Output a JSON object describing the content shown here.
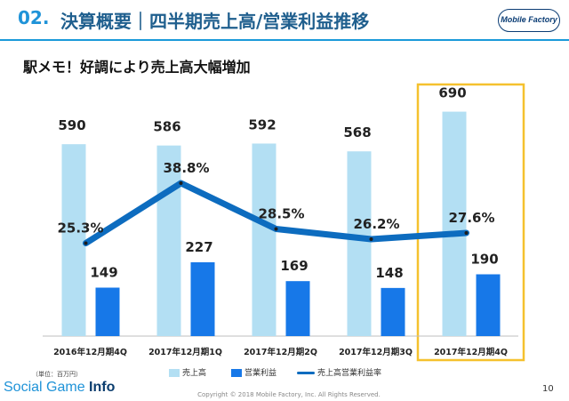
{
  "header": {
    "section_number": "02.",
    "title": "決算概要｜四半期売上高/営業利益推移",
    "logo_text": "Mobile Factory"
  },
  "subtitle": "駅メモ！好調により売上高大幅増加",
  "chart_data": {
    "type": "bar",
    "categories": [
      "2016年12月期4Q",
      "2017年12月期1Q",
      "2017年12月期2Q",
      "2017年12月期3Q",
      "2017年12月期4Q"
    ],
    "series": [
      {
        "name": "売上高",
        "type": "bar",
        "values": [
          590,
          586,
          592,
          568,
          690
        ],
        "labels": [
          "590",
          "586",
          "592",
          "568",
          "690"
        ],
        "color": "#b3dff3"
      },
      {
        "name": "営業利益",
        "type": "bar",
        "values": [
          149,
          227,
          169,
          148,
          190
        ],
        "labels": [
          "149",
          "227",
          "169",
          "148",
          "190"
        ],
        "color": "#1778e8"
      },
      {
        "name": "売上高営業利益率",
        "type": "line",
        "values": [
          25.3,
          38.8,
          28.5,
          26.2,
          27.6
        ],
        "labels": [
          "25.3%",
          "38.8%",
          "28.5%",
          "26.2%",
          "27.6%"
        ],
        "color": "#0d6cbf"
      }
    ],
    "ylim": [
      0,
      760
    ],
    "highlight_category": "2017年12月期4Q",
    "highlight_color": "#f5c12e",
    "unit_note": "（単位：百万円）",
    "grid": false,
    "legend_position": "bottom"
  },
  "footer": {
    "brand_plain": "Social Game ",
    "brand_bold": "Info",
    "copyright": "Copyright © 2018 Mobile Factory, Inc. All Rights Reserved.",
    "page_number": "10"
  }
}
